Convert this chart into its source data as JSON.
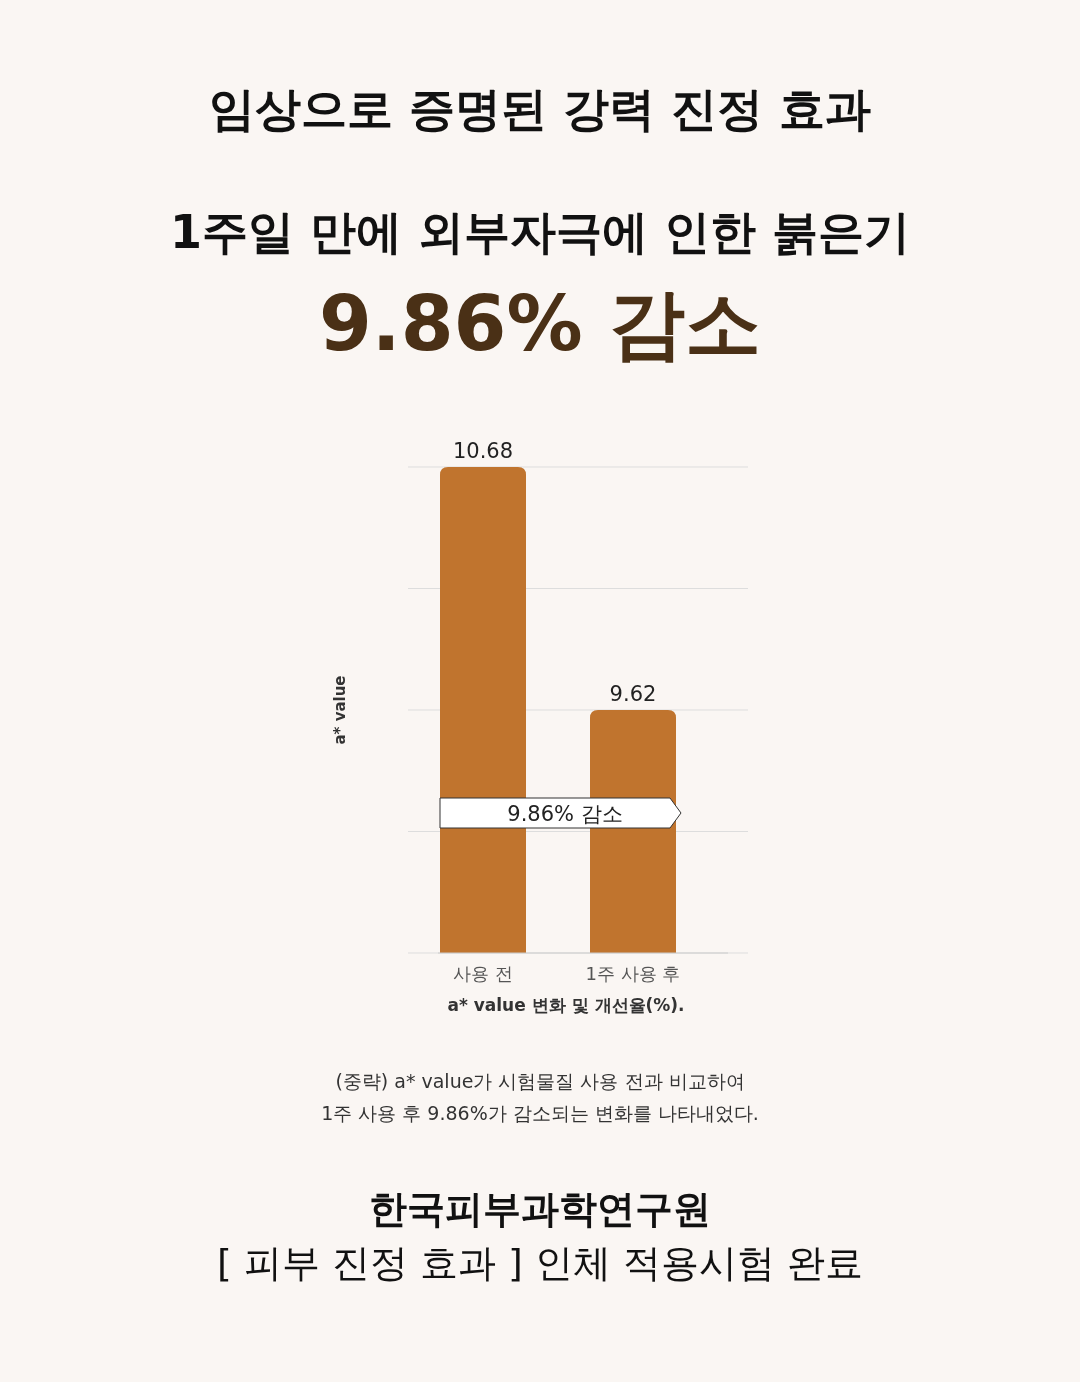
{
  "chart_data": {
    "type": "bar",
    "title": "임상으로 증명된 강력 진정 효과",
    "subtitle": "1주일 만에 외부자극에 인한 붉은기",
    "categories": [
      "사용 전",
      "1주 사용 후"
    ],
    "values": [
      10.68,
      9.62
    ],
    "color": "#c0742e",
    "ylabel": "a* value",
    "xlabel": "a* value 변화 및 개선율(%).",
    "ylim": [
      8.56,
      10.68
    ],
    "yticks": [
      {
        "value": 8.56,
        "label": null
      },
      {
        "value": 9.09,
        "label": null
      },
      {
        "value": 9.62,
        "label": null
      },
      {
        "value": 10.15,
        "label": null
      },
      {
        "value": 10.68,
        "label": null
      }
    ],
    "grid": "y",
    "tick_labels": "x",
    "data_labels": true,
    "annotations": [
      "9.86% 감소",
      "9.86% 감소",
      "(중략) a* value가 시험물질 사용 전과 비교하여",
      "1주 사용 후  9.86%가 감소되는 변화를 나타내었다.",
      "한국피부과학연구원",
      "[ 피부 진정 효과 ] 인체 적용시험 완료"
    ]
  }
}
